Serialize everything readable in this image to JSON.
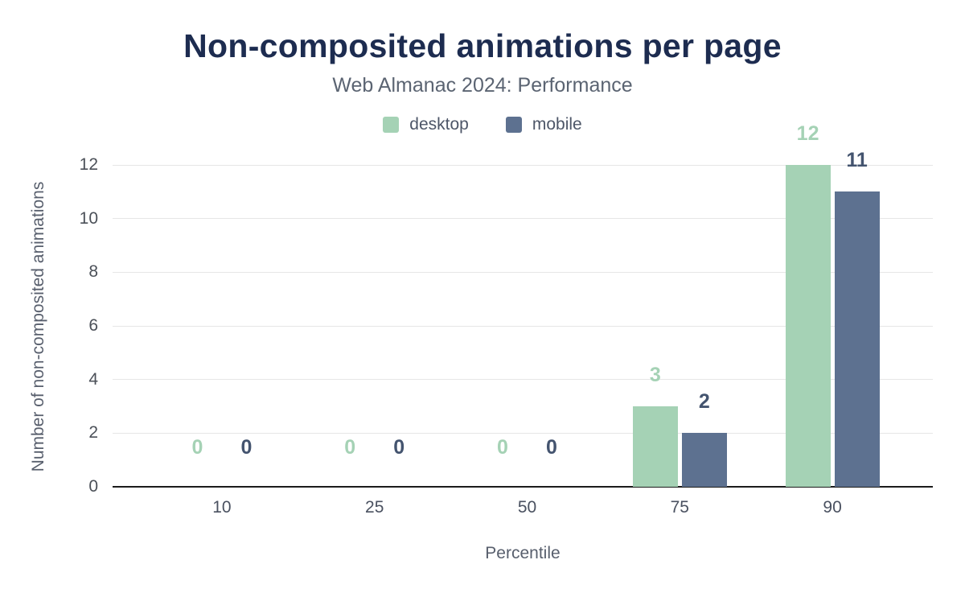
{
  "chart_data": {
    "type": "bar",
    "title": "Non-composited animations per page",
    "subtitle": "Web Almanac 2024: Performance",
    "categories": [
      "10",
      "25",
      "50",
      "75",
      "90"
    ],
    "series": [
      {
        "name": "desktop",
        "values": [
          0,
          0,
          0,
          3,
          12
        ],
        "color": "#a5d2b5",
        "label_color": "#a5d2b5"
      },
      {
        "name": "mobile",
        "values": [
          0,
          0,
          0,
          2,
          11
        ],
        "color": "#5d7190",
        "label_color": "#44546f"
      }
    ],
    "xlabel": "Percentile",
    "ylabel": "Number of non-composited animations",
    "ylim": [
      0,
      12
    ],
    "yticks": [
      0,
      2,
      4,
      6,
      8,
      10,
      12
    ],
    "grid": true,
    "legend_position": "top",
    "colors": {
      "title": "#1d2c50",
      "subtitle": "#5b6472",
      "gridline": "#e6e6e6",
      "axis_line": "#1b1b1b",
      "background": "#ffffff"
    }
  }
}
